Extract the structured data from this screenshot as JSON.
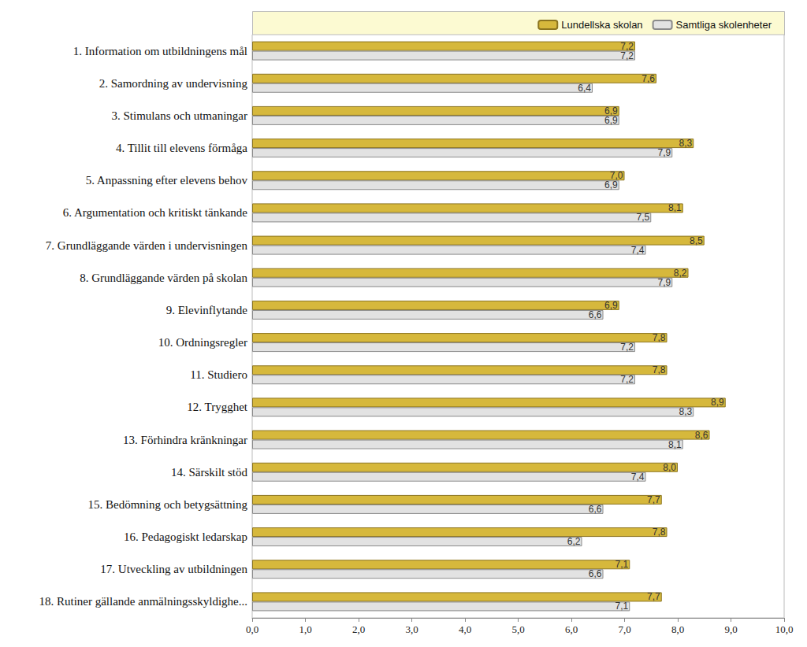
{
  "chart_data": {
    "type": "bar",
    "orientation": "horizontal",
    "categories": [
      "1. Information om utbildningens mål",
      "2. Samordning av undervisning",
      "3. Stimulans och utmaningar",
      "4. Tillit till elevens förmåga",
      "5. Anpassning efter elevens behov",
      "6. Argumentation och kritiskt tänkande",
      "7. Grundläggande värden i undervisningen",
      "8. Grundläggande värden på skolan",
      "9. Elevinflytande",
      "10. Ordningsregler",
      "11. Studiero",
      "12. Trygghet",
      "13. Förhindra kränkningar",
      "14. Särskilt stöd",
      "15. Bedömning och betygsättning",
      "16. Pedagogiskt ledarskap",
      "17. Utveckling av utbildningen",
      "18. Rutiner gällande anmälningsskyldighe..."
    ],
    "series": [
      {
        "name": "Lundellska skolan",
        "color": "#d6b83c",
        "values": [
          7.2,
          7.6,
          6.9,
          8.3,
          7.0,
          8.1,
          8.5,
          8.2,
          6.9,
          7.8,
          7.8,
          8.9,
          8.6,
          8.0,
          7.7,
          7.8,
          7.1,
          7.7
        ],
        "value_labels": [
          "7,2",
          "7,6",
          "6,9",
          "8,3",
          "7,0",
          "8,1",
          "8,5",
          "8,2",
          "6,9",
          "7,8",
          "7,8",
          "8,9",
          "8,6",
          "8,0",
          "7,7",
          "7,8",
          "7,1",
          "7,7"
        ]
      },
      {
        "name": "Samtliga skolenheter",
        "color": "#e2e2e2",
        "values": [
          7.2,
          6.4,
          6.9,
          7.9,
          6.9,
          7.5,
          7.4,
          7.9,
          6.6,
          7.2,
          7.2,
          8.3,
          8.1,
          7.4,
          6.6,
          6.2,
          6.6,
          7.1
        ],
        "value_labels": [
          "7,2",
          "6,4",
          "6,9",
          "7,9",
          "6,9",
          "7,5",
          "7,4",
          "7,9",
          "6,6",
          "7,2",
          "7,2",
          "8,3",
          "8,1",
          "7,4",
          "6,6",
          "6,2",
          "6,6",
          "7,1"
        ]
      }
    ],
    "xlim": [
      0,
      10
    ],
    "xticks": [
      {
        "value": 0,
        "label": "0,0"
      },
      {
        "value": 1,
        "label": "1,0"
      },
      {
        "value": 2,
        "label": "2,0"
      },
      {
        "value": 3,
        "label": "3,0"
      },
      {
        "value": 4,
        "label": "4,0"
      },
      {
        "value": 5,
        "label": "5,0"
      },
      {
        "value": 6,
        "label": "6,0"
      },
      {
        "value": 7,
        "label": "7,0"
      },
      {
        "value": 8,
        "label": "8,0"
      },
      {
        "value": 9,
        "label": "9,0"
      },
      {
        "value": 10,
        "label": "10,0"
      }
    ],
    "data_labels": true,
    "legend": "top-right",
    "grid": false
  }
}
